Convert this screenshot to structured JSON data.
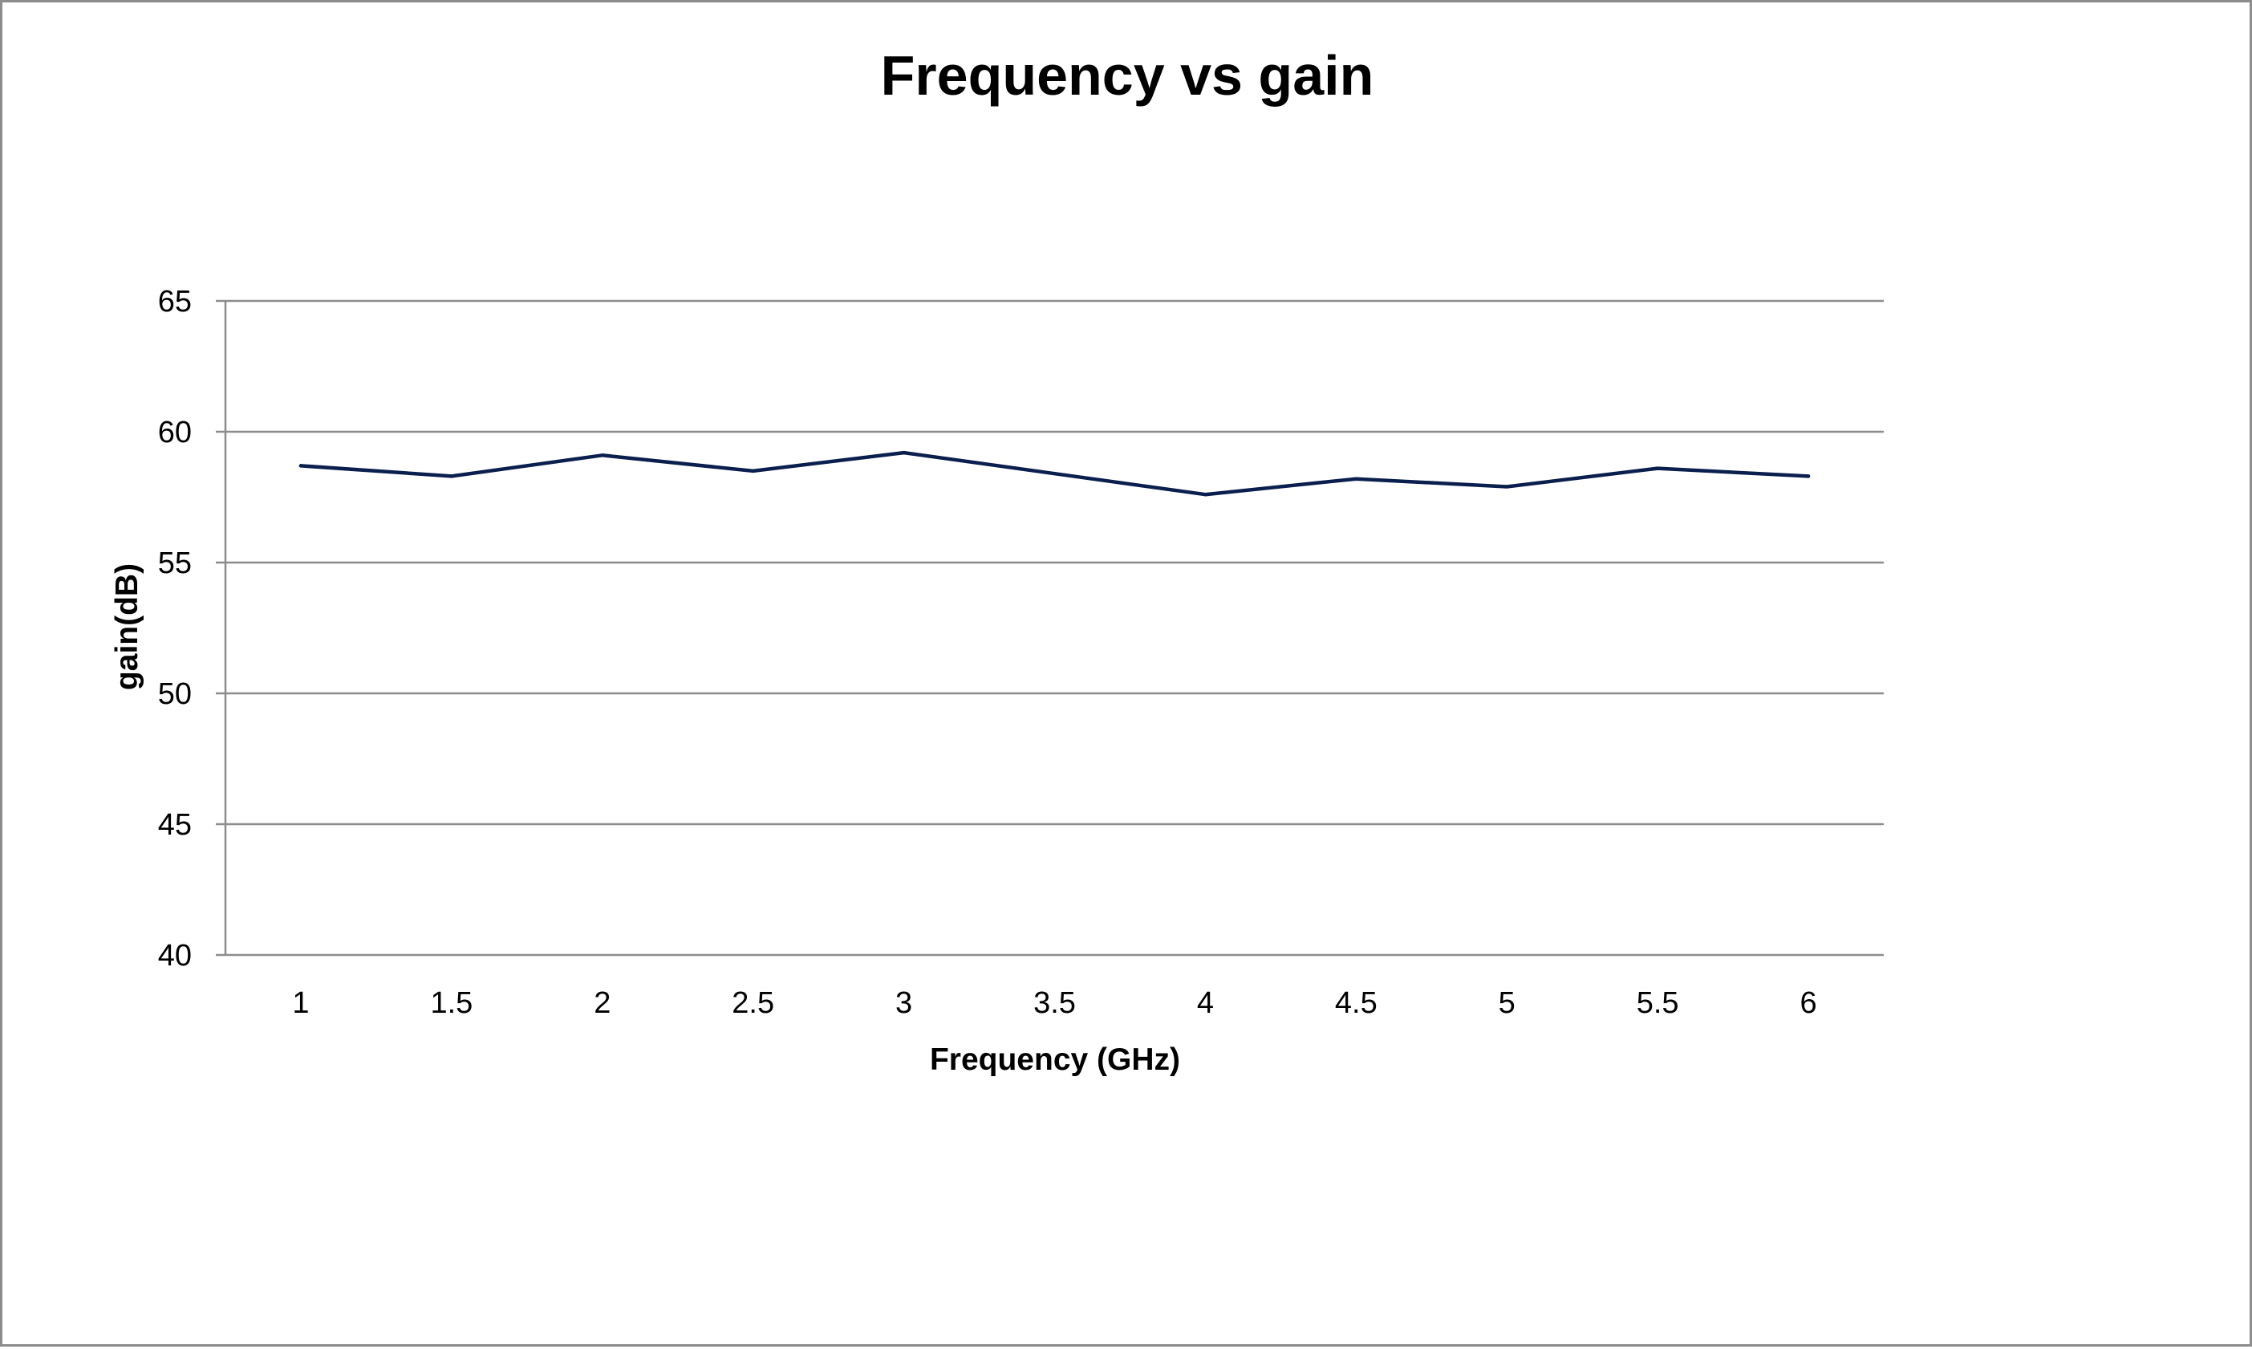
{
  "chart_data": {
    "type": "line",
    "title": "Frequency vs gain",
    "xlabel": "Frequency (GHz)",
    "ylabel": "gain(dB)",
    "categories": [
      "1",
      "1.5",
      "2",
      "2.5",
      "3",
      "3.5",
      "4",
      "4.5",
      "5",
      "5.5",
      "6"
    ],
    "series": [
      {
        "values": [
          58.7,
          58.3,
          59.1,
          58.5,
          59.2,
          58.4,
          57.6,
          58.2,
          57.9,
          58.6,
          58.3
        ]
      }
    ],
    "ylim": [
      40,
      65
    ],
    "yticks": [
      40,
      45,
      50,
      55,
      60,
      65
    ],
    "grid": true,
    "legend": "none"
  },
  "colors": {
    "line": "#0b1f4f",
    "grid": "#8c8c8c",
    "frame": "#8c8c8c"
  }
}
